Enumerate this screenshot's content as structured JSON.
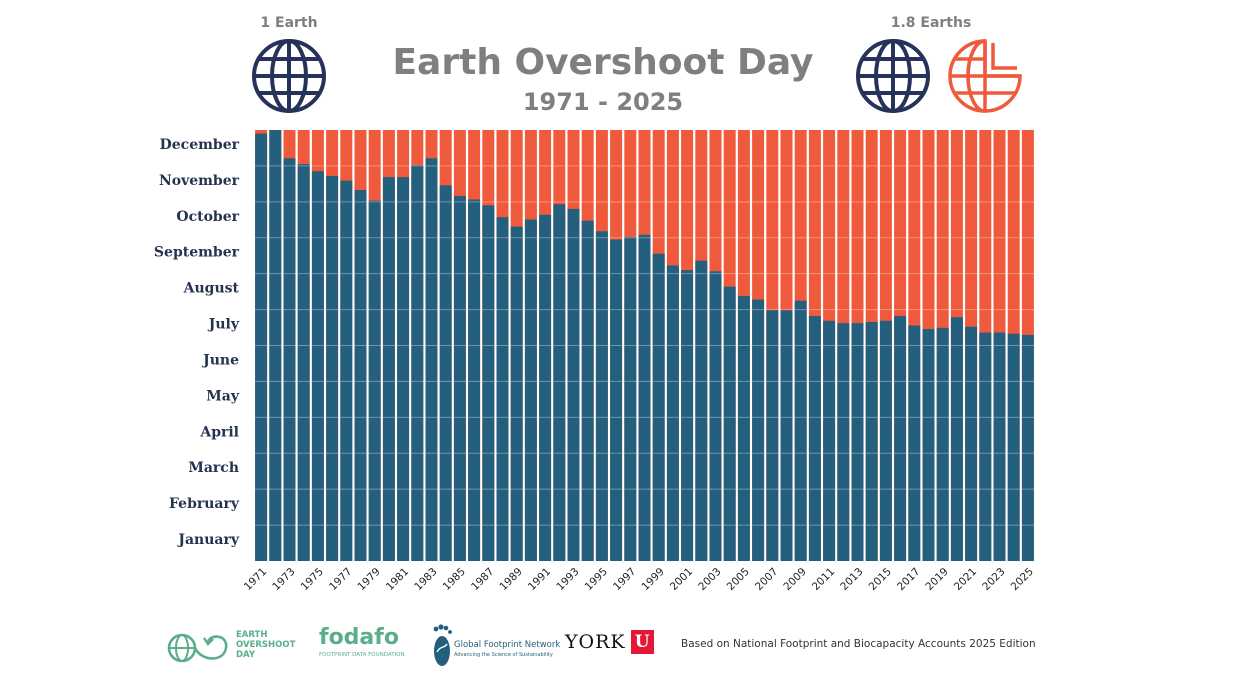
{
  "header": {
    "left_label": "1 Earth",
    "right_label": "1.8 Earths",
    "title": "Earth Overshoot Day",
    "subtitle": "1971 - 2025"
  },
  "colors": {
    "used": "#245f7d",
    "overshoot": "#ef5a3c",
    "globe": "#26325a",
    "logo_green": "#5aae8a"
  },
  "footer": {
    "eod_logo": [
      "EARTH",
      "OVERSHOOT",
      "DAY"
    ],
    "fodafo_name": "fodafo",
    "fodafo_sub": "FOOTPRINT DATA FOUNDATION",
    "gfn_name": "Global Footprint Network",
    "gfn_sub": "Advancing the Science of Sustainability",
    "york": "YORK",
    "york_u": "U",
    "note": "Based on National Footprint and Biocapacity Accounts 2025 Edition"
  },
  "chart_data": {
    "type": "bar",
    "title": "Earth Overshoot Day",
    "subtitle": "1971 - 2025",
    "y_labels": [
      "January",
      "February",
      "March",
      "April",
      "May",
      "June",
      "July",
      "August",
      "September",
      "October",
      "November",
      "December"
    ],
    "x_tick_labels": [
      "1971",
      "1973",
      "1975",
      "1977",
      "1979",
      "1981",
      "1983",
      "1985",
      "1987",
      "1989",
      "1991",
      "1993",
      "1995",
      "1997",
      "1999",
      "2001",
      "2003",
      "2005",
      "2007",
      "2009",
      "2011",
      "2013",
      "2015",
      "2017",
      "2019",
      "2021",
      "2023",
      "2025"
    ],
    "ylim": [
      0,
      366
    ],
    "series": [
      {
        "x": [
          1971,
          1972,
          1973,
          1974,
          1975,
          1976,
          1977,
          1978,
          1979,
          1980,
          1981,
          1982,
          1983,
          1984,
          1985,
          1986,
          1987,
          1988,
          1989,
          1990,
          1991,
          1992,
          1993,
          1994,
          1995,
          1996,
          1997,
          1998,
          1999,
          2000,
          2001,
          2002,
          2003,
          2004,
          2005,
          2006,
          2007,
          2008,
          2009,
          2010,
          2011,
          2012,
          2013,
          2014,
          2015,
          2016,
          2017,
          2018,
          2019,
          2020,
          2021,
          2022,
          2023,
          2024,
          2025
        ],
        "values": [
          363,
          366,
          342,
          337,
          331,
          327,
          323,
          315,
          306,
          326,
          326,
          336,
          342,
          319,
          310,
          307,
          302,
          292,
          284,
          290,
          294,
          303,
          299,
          289,
          280,
          273,
          275,
          277,
          261,
          251,
          247,
          255,
          246,
          233,
          225,
          222,
          213,
          213,
          221,
          208,
          204,
          202,
          202,
          203,
          204,
          208,
          200,
          197,
          198,
          207,
          199,
          194,
          194,
          193,
          192
        ]
      }
    ]
  }
}
